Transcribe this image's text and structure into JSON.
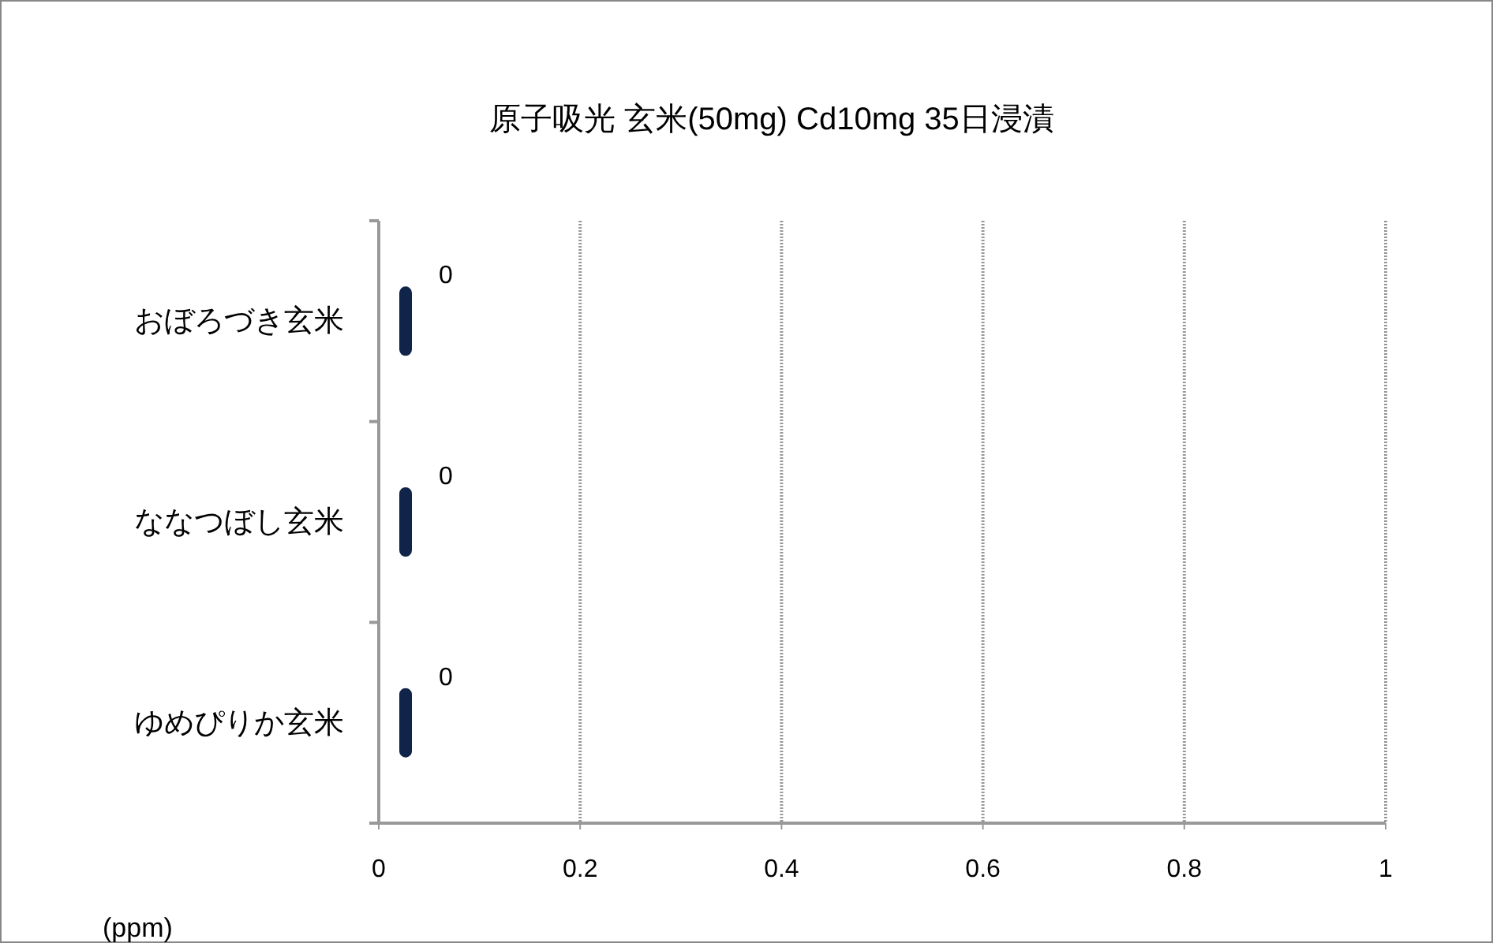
{
  "chart_data": {
    "type": "bar",
    "orientation": "horizontal",
    "title": "原子吸光  玄米(50mg)   Cd10mg 35日浸漬",
    "xlabel": "(ppm)",
    "categories": [
      "おぼろづき玄米",
      "ななつぼし玄米",
      "ゆめぴりか玄米"
    ],
    "values": [
      0,
      0,
      0
    ],
    "color": "#0f2448",
    "xlim": [
      0,
      1
    ],
    "xticks": [
      0,
      0.2,
      0.4,
      0.6,
      0.8,
      1
    ],
    "grid": "x",
    "data_labels": true
  }
}
